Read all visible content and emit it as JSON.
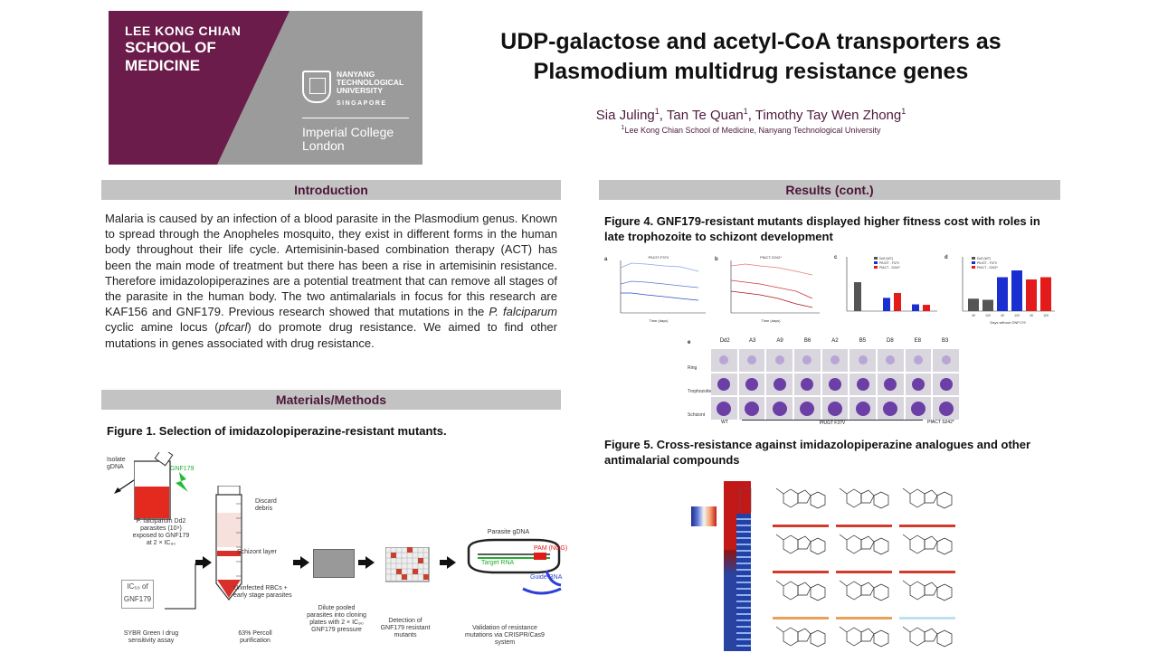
{
  "logo": {
    "school_line1": "LEE KONG CHIAN",
    "school_line2": "SCHOOL OF",
    "school_line3": "MEDICINE",
    "ntu_line1": "NANYANG",
    "ntu_line2": "TECHNOLOGICAL",
    "ntu_line3": "UNIVERSITY",
    "ntu_sub": "SINGAPORE",
    "imperial_line1": "Imperial College",
    "imperial_line2": "London",
    "colors": {
      "purple": "#6b1c4a",
      "grey": "#9b9b9b"
    }
  },
  "title": {
    "line1": "UDP-galactose and acetyl-CoA transporters as",
    "line2": "Plasmodium multidrug resistance genes"
  },
  "authors": {
    "a1": "Sia Juling",
    "a2": "Tan Te Quan",
    "a3": "Timothy Tay Wen Zhong",
    "sup": "1",
    "affil_sup": "1",
    "affiliation": "Lee Kong Chian School of Medicine, Nanyang Technological University"
  },
  "sections": {
    "introduction": "Introduction",
    "methods": "Materials/Methods",
    "results": "Results (cont.)"
  },
  "intro": {
    "p1": "Malaria is caused by an infection of a blood parasite in the Plasmodium genus. Known to spread through the Anopheles mosquito, they exist in different forms in the human body throughout their life cycle. Artemisinin-based combination therapy (ACT) has been the main mode of treatment but there has been a rise in artemisinin resistance. Therefore imidazolopiperazines are a potential treatment that can remove all stages of the parasite in the human body. The two antimalarials in focus for this research are KAF156 and GNF179. Previous research showed that mutations in the ",
    "italic1": "P. falciparum",
    "p2": " cyclic amine locus (",
    "italic2": "pfcarl",
    "p3": ") do promote drug resistance. We aimed to find other mutations in genes associated with drug resistance."
  },
  "figures": {
    "fig1": "Figure 1. Selection of imidazolopiperazine-resistant mutants.",
    "fig4": "Figure 4. GNF179-resistant mutants displayed higher fitness cost with roles in late trophozoite to schizont development",
    "fig5": "Figure 5. Cross-resistance against imidazolopiperazine analogues and other antimalarial compounds"
  },
  "fig1_labels": {
    "isolate": "Isolate gDNA",
    "gnf": "GNF179",
    "parasites": "P. falciparum Dd2 parasites (10⁹) exposed to GNF179 at 2 × IC₉₀",
    "discard": "Discard debris",
    "schizont": "Schizont layer",
    "uninfected": "Uninfected RBCs + early stage parasites",
    "ic50": "IC₅₀ of GNF179",
    "step1": "SYBR Green I drug sensitivity assay",
    "step2": "63% Percoll purification",
    "step3": "Dilute pooled parasites into cloning plates with 2 × IC₉₀ GNF179 pressure",
    "step4": "Detection of GNF179 resistant mutants",
    "step5": "Validation of resistance mutations via CRISPR/Cas9 system",
    "gdna": "Parasite gDNA",
    "pam": "PAM (NGG)",
    "target": "Target RNA",
    "guide": "Guide RNA"
  },
  "fig4_labels": {
    "a_title": "PfUGT-F37V",
    "b_title": "PfACT-S242*",
    "xlabel": "Time (days)",
    "c_legend": [
      "Dd2 (WT)",
      "PfUGT - F37V",
      "PfACT - S242*"
    ],
    "d_xlabel": "Days without GNF179",
    "e_cols": [
      "Dd2",
      "A3",
      "A9",
      "B6",
      "A2",
      "B5",
      "D8",
      "E8",
      "B3"
    ],
    "e_rows": [
      "Ring",
      "Trophozoite",
      "Schizont"
    ],
    "e_groups": [
      "WT",
      "PfUGT F37V",
      "PfACT S242*"
    ],
    "colors": {
      "wt": "#555555",
      "ugt": "#1b2fd1",
      "act": "#e31b1b"
    }
  },
  "chart_data": [
    {
      "type": "bar",
      "categories": [
        "Dd2 (WT)",
        "PfUGT - F37V",
        "PfACT - S242*"
      ],
      "series": [
        {
          "name": "Dd2 (WT)",
          "values": [
            12,
            null,
            null
          ]
        },
        {
          "name": "PfUGT - F37V",
          "values": [
            null,
            5.5,
            2.8
          ]
        },
        {
          "name": "PfACT - S242*",
          "values": [
            null,
            7.5,
            2.6
          ]
        }
      ],
      "ylim": [
        0,
        15
      ]
    },
    {
      "type": "bar",
      "categories": [
        "40",
        "120",
        "40",
        "120",
        "40",
        "120"
      ],
      "series": [
        {
          "name": "Dd2 (WT)",
          "values": [
            1100,
            1000,
            null,
            null,
            null,
            null
          ]
        },
        {
          "name": "PfUGT - F37V",
          "values": [
            null,
            null,
            3000,
            3600,
            null,
            null
          ]
        },
        {
          "name": "PfACT - S242*",
          "values": [
            null,
            null,
            null,
            null,
            2800,
            3000
          ]
        }
      ],
      "xlabel": "Days without GNF179",
      "ylim": [
        0,
        4000
      ]
    }
  ]
}
